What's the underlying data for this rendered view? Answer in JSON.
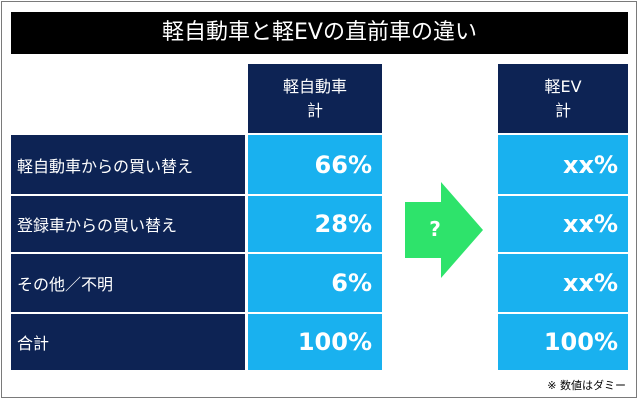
{
  "title": "軽自動車と軽EVの直前車の違い",
  "note": "※ 数値はダミー",
  "arrow_label": "?",
  "colors": {
    "header_bg": "#0d2354",
    "cell_bg": "#19b1ef",
    "arrow": "#2ee36b",
    "title_bg": "#000000"
  },
  "chart_data": {
    "type": "table",
    "columns": [
      {
        "line1": "軽自動車",
        "line2": "計"
      },
      {
        "line1": "軽EV",
        "line2": "計"
      }
    ],
    "rows": [
      {
        "label": "軽自動車からの買い替え",
        "values": [
          "66%",
          "xx%"
        ]
      },
      {
        "label": "登録車からの買い替え",
        "values": [
          "28%",
          "xx%"
        ]
      },
      {
        "label": "その他／不明",
        "values": [
          "6%",
          "xx%"
        ]
      },
      {
        "label": "合計",
        "values": [
          "100%",
          "100%"
        ]
      }
    ]
  }
}
